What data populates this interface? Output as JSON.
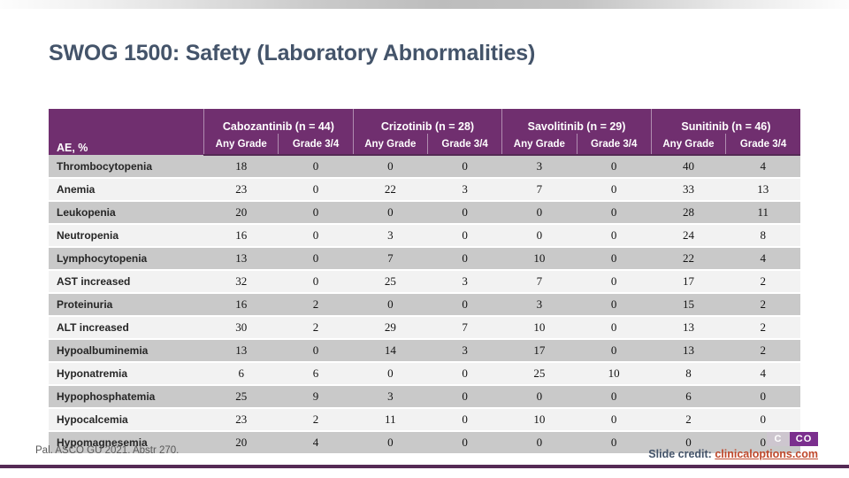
{
  "slide": {
    "title": "SWOG 1500: Safety (Laboratory Abnormalities)",
    "source": "Pal. ASCO GU 2021. Abstr 270.",
    "credit_label": "Slide credit: ",
    "credit_link": "clinicaloptions.com",
    "logo": {
      "left_text": "C",
      "right_text": "CO"
    }
  },
  "table": {
    "corner_header": "AE, %",
    "groups": [
      "Cabozantinib (n = 44)",
      "Crizotinib (n = 28)",
      "Savolitinib (n = 29)",
      "Sunitinib (n = 46)"
    ],
    "subheaders": [
      "Any Grade",
      "Grade 3/4"
    ],
    "rows": [
      {
        "label": "Thrombocytopenia",
        "values": [
          18,
          0,
          0,
          0,
          3,
          0,
          40,
          4
        ]
      },
      {
        "label": "Anemia",
        "values": [
          23,
          0,
          22,
          3,
          7,
          0,
          33,
          13
        ]
      },
      {
        "label": "Leukopenia",
        "values": [
          20,
          0,
          0,
          0,
          0,
          0,
          28,
          11
        ]
      },
      {
        "label": "Neutropenia",
        "values": [
          16,
          0,
          3,
          0,
          0,
          0,
          24,
          8
        ]
      },
      {
        "label": "Lymphocytopenia",
        "values": [
          13,
          0,
          7,
          0,
          10,
          0,
          22,
          4
        ]
      },
      {
        "label": "AST increased",
        "values": [
          32,
          0,
          25,
          3,
          7,
          0,
          17,
          2
        ]
      },
      {
        "label": "Proteinuria",
        "values": [
          16,
          2,
          0,
          0,
          3,
          0,
          15,
          2
        ]
      },
      {
        "label": "ALT increased",
        "values": [
          30,
          2,
          29,
          7,
          10,
          0,
          13,
          2
        ]
      },
      {
        "label": "Hypoalbuminemia",
        "values": [
          13,
          0,
          14,
          3,
          17,
          0,
          13,
          2
        ]
      },
      {
        "label": "Hyponatremia",
        "values": [
          6,
          6,
          0,
          0,
          25,
          10,
          8,
          4
        ]
      },
      {
        "label": "Hypophosphatemia",
        "values": [
          25,
          9,
          3,
          0,
          0,
          0,
          6,
          0
        ]
      },
      {
        "label": "Hypocalcemia",
        "values": [
          23,
          2,
          11,
          0,
          10,
          0,
          2,
          0
        ]
      },
      {
        "label": "Hypomagnesemia",
        "values": [
          20,
          4,
          0,
          0,
          0,
          0,
          0,
          0
        ]
      }
    ]
  },
  "colors": {
    "header_purple": "#702f6f",
    "row_dark": "#c9c9c9",
    "row_light": "#f2f2f2",
    "accent_line": "#552a55",
    "title_color": "#44546a",
    "link_orange": "#c0492c",
    "logo_purple": "#7b2f8e",
    "logo_gray": "#cdc6cf",
    "source_gray": "#595959"
  }
}
